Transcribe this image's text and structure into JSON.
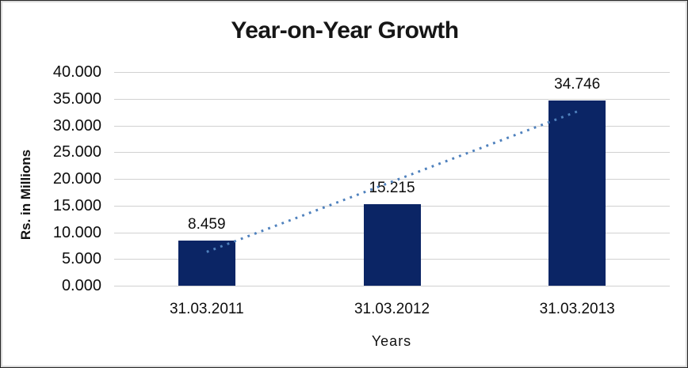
{
  "chart_data": {
    "type": "bar",
    "title": "Year-on-Year Growth",
    "xlabel": "Years",
    "ylabel": "Rs. in Millions",
    "categories": [
      "31.03.2011",
      "31.03.2012",
      "31.03.2013"
    ],
    "values": [
      8.459,
      15.215,
      34.746
    ],
    "value_labels": [
      "8.459",
      "15.215",
      "34.746"
    ],
    "ylim": [
      0,
      40
    ],
    "ytick_step": 5,
    "ytick_labels": [
      "0.000",
      "5.000",
      "10.000",
      "15.000",
      "20.000",
      "25.000",
      "30.000",
      "35.000",
      "40.000"
    ],
    "grid": true,
    "legend": "none",
    "bar_color": "#0b2565",
    "trendline": {
      "type": "linear",
      "style": "dotted",
      "color": "#4f81bd",
      "start_value": 6.33,
      "end_value": 32.61
    }
  }
}
